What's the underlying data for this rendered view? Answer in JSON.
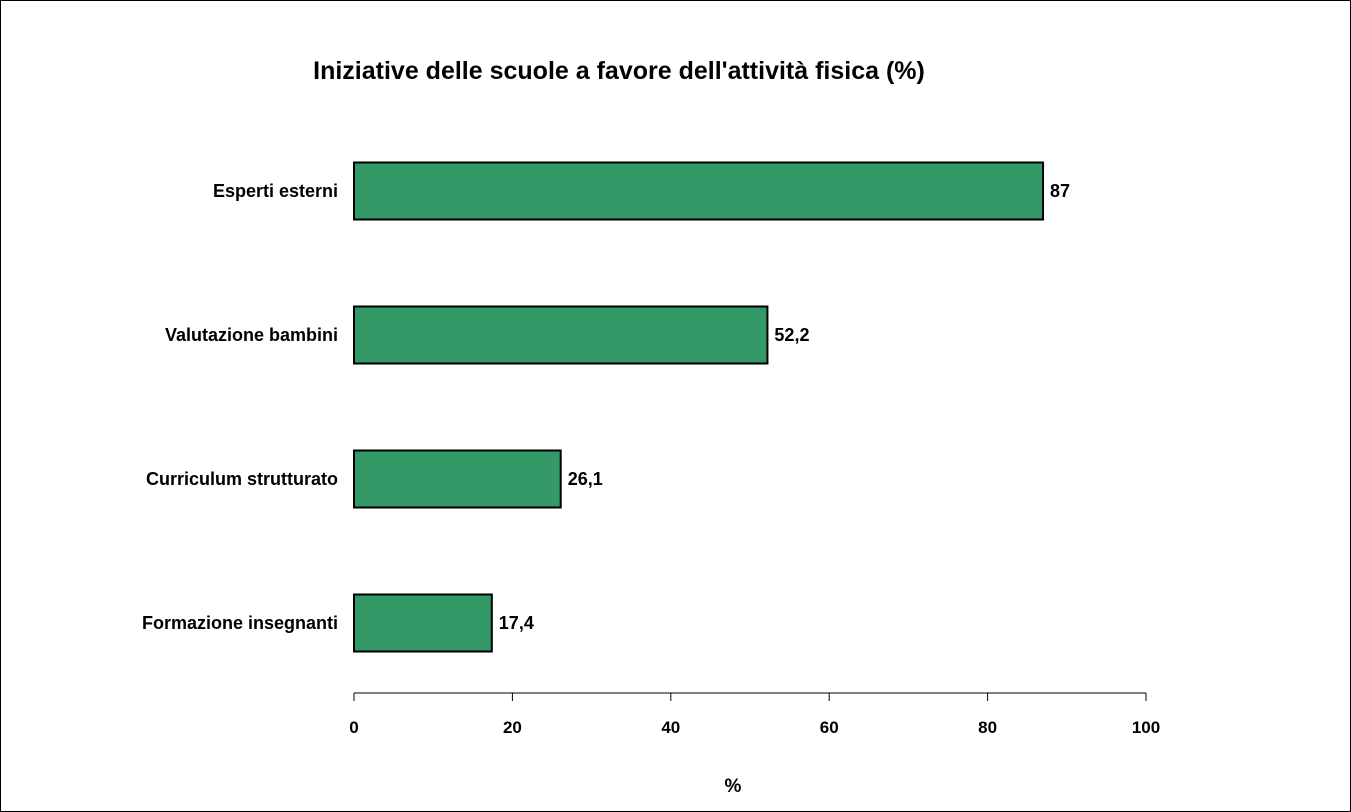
{
  "chart_data": {
    "type": "bar",
    "orientation": "horizontal",
    "title": "Iniziative delle scuole a favore dell'attività fisica (%)",
    "categories": [
      "Esperti esterni",
      "Valutazione bambini",
      "Curriculum strutturato",
      "Formazione insegnanti"
    ],
    "values": [
      87,
      52.2,
      26.1,
      17.4
    ],
    "value_labels": [
      "87",
      "52,2",
      "26,1",
      "17,4"
    ],
    "xlabel": "%",
    "ylabel": "",
    "xlim": [
      0,
      100
    ],
    "x_ticks": [
      0,
      20,
      40,
      60,
      80,
      100
    ],
    "grid": false,
    "legend": "none",
    "bar_color": "#339966",
    "bar_border_color": "#000000"
  }
}
